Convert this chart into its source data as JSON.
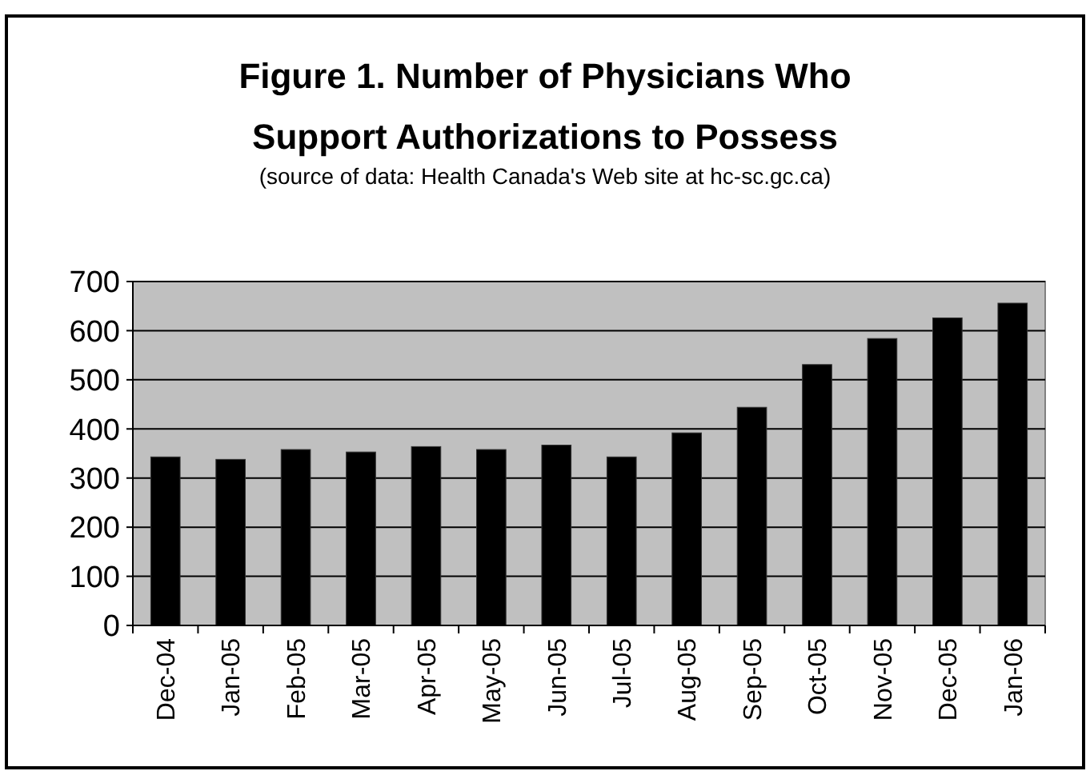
{
  "chart_data": {
    "type": "bar",
    "title": "Figure 1. Number of Physicians Who Support Authorizations to Possess",
    "subtitle": "(source of data: Health Canada's Web site at hc-sc.gc.ca)",
    "categories": [
      "Dec-04",
      "Jan-05",
      "Feb-05",
      "Mar-05",
      "Apr-05",
      "May-05",
      "Jun-05",
      "Jul-05",
      "Aug-05",
      "Sep-05",
      "Oct-05",
      "Nov-05",
      "Dec-05",
      "Jan-06"
    ],
    "values": [
      343,
      338,
      358,
      353,
      364,
      358,
      367,
      343,
      392,
      444,
      531,
      584,
      626,
      656
    ],
    "color": "#000000",
    "ylim": [
      0,
      700
    ],
    "yticks": [
      0,
      100,
      200,
      300,
      400,
      500,
      600,
      700
    ],
    "grid": "y"
  }
}
